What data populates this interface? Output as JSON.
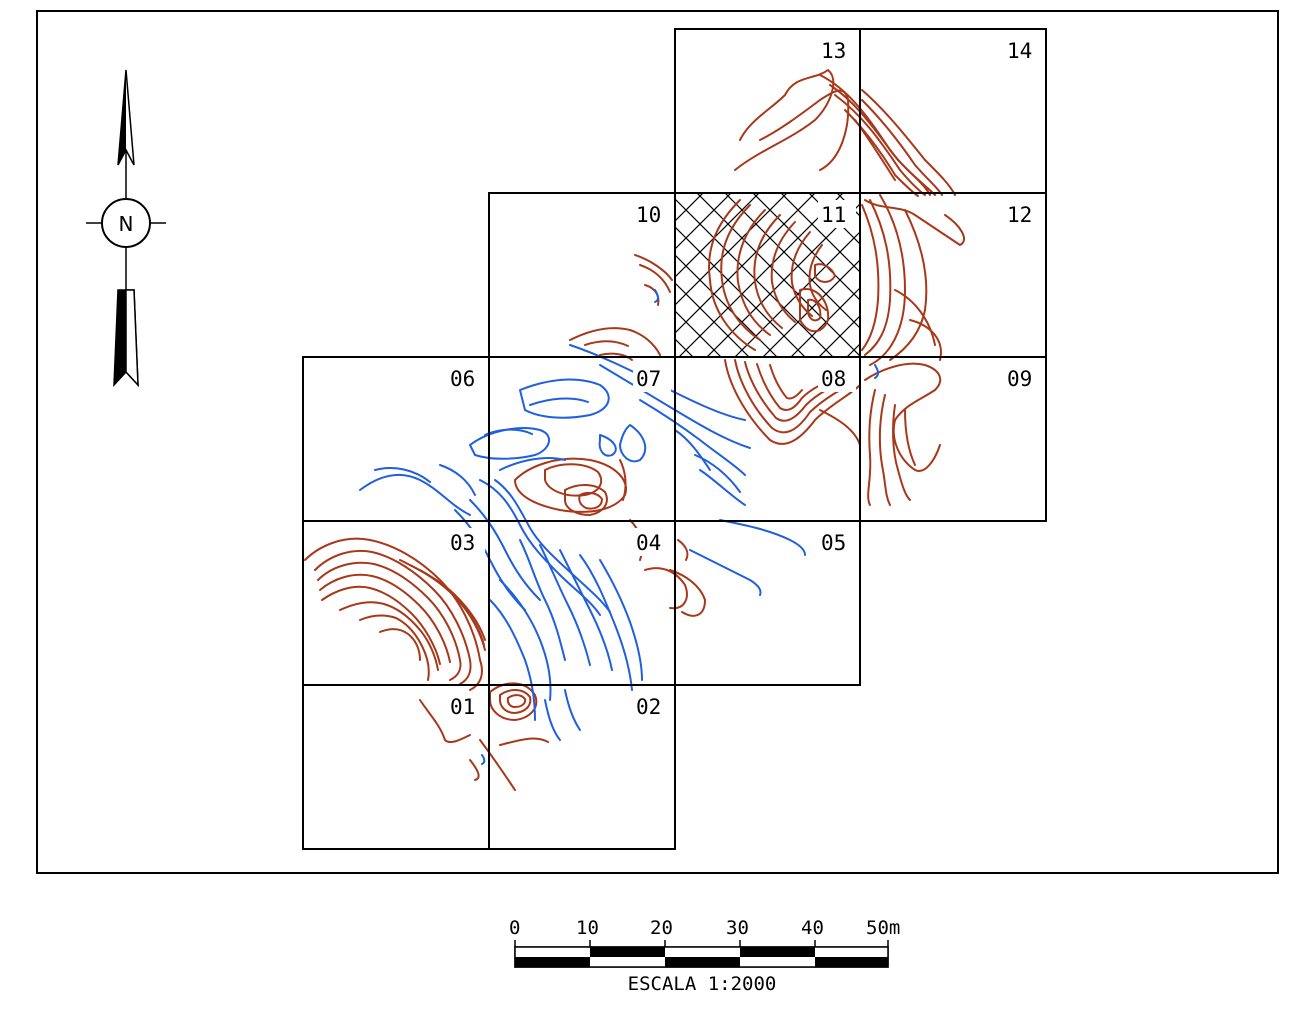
{
  "tiles": [
    {
      "id": "01",
      "label": "01"
    },
    {
      "id": "02",
      "label": "02"
    },
    {
      "id": "03",
      "label": "03"
    },
    {
      "id": "04",
      "label": "04"
    },
    {
      "id": "05",
      "label": "05"
    },
    {
      "id": "06",
      "label": "06"
    },
    {
      "id": "07",
      "label": "07"
    },
    {
      "id": "08",
      "label": "08"
    },
    {
      "id": "09",
      "label": "09"
    },
    {
      "id": "10",
      "label": "10"
    },
    {
      "id": "11",
      "label": "11"
    },
    {
      "id": "12",
      "label": "12"
    },
    {
      "id": "13",
      "label": "13"
    },
    {
      "id": "14",
      "label": "14"
    }
  ],
  "north_arrow": {
    "label": "N"
  },
  "scale_bar": {
    "ticks": [
      "0",
      "10",
      "20",
      "30",
      "40",
      "50m"
    ],
    "caption": "ESCALA 1:2000"
  },
  "colors": {
    "contour_positive": "#a8381a",
    "contour_negative": "#1f5fe0",
    "frame": "#000000"
  }
}
